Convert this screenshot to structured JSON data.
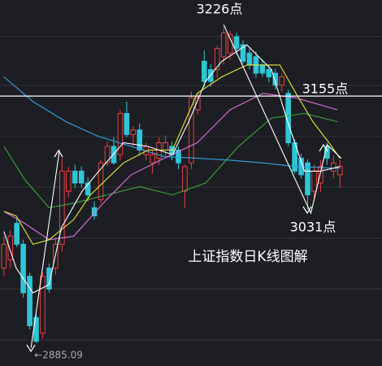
{
  "chart_data": {
    "type": "candlestick",
    "title": "上证指数日K线图解",
    "up_color": "#e8403f",
    "down_color": "#2fc6d8",
    "ylim": [
      2860,
      3260
    ],
    "xlim": [
      -0.6,
      58.5
    ],
    "open": [
      2967,
      2976,
      3016,
      2993,
      2958,
      2913,
      2896,
      2967,
      2967,
      2993,
      3051,
      3073,
      3073,
      3060,
      3033,
      3042,
      3082,
      3100,
      3091,
      3136,
      3113,
      3118,
      3091,
      3082,
      3087,
      3096,
      3100,
      3096,
      3051,
      3082,
      3140,
      3193,
      3184,
      3184,
      3198,
      3202,
      3220,
      3211,
      3202,
      3198,
      3189,
      3184,
      3180,
      3167,
      3158,
      3104,
      3087,
      3082,
      3051,
      3060,
      3100,
      3073,
      3069
    ],
    "high": [
      3002,
      3008,
      3022,
      2998,
      2962,
      2920,
      2962,
      2972,
      3000,
      3087,
      3078,
      3080,
      3078,
      3066,
      3040,
      3085,
      3105,
      3110,
      3140,
      3149,
      3122,
      3125,
      3104,
      3096,
      3110,
      3112,
      3105,
      3100,
      3080,
      3160,
      3158,
      3205,
      3190,
      3210,
      3230,
      3226,
      3224,
      3216,
      3207,
      3204,
      3195,
      3188,
      3185,
      3180,
      3162,
      3108,
      3092,
      3086,
      3080,
      3085,
      3104,
      3090,
      3085
    ],
    "low": [
      2958,
      2967,
      2990,
      2935,
      2900,
      2885.09,
      2890,
      2940,
      2960,
      2985,
      3045,
      3055,
      3055,
      3040,
      3020,
      3038,
      3078,
      3080,
      3085,
      3110,
      3100,
      3090,
      3085,
      3070,
      3080,
      3090,
      3085,
      3075,
      3033,
      3075,
      3135,
      3165,
      3165,
      3175,
      3190,
      3195,
      3200,
      3190,
      3184,
      3175,
      3176,
      3170,
      3162,
      3160,
      3100,
      3070,
      3065,
      3031,
      3040,
      3050,
      3080,
      3065,
      3055
    ],
    "close": [
      2993,
      3002,
      2993,
      2940,
      2904,
      2887,
      2958,
      2944,
      2993,
      3073,
      3073,
      3060,
      3060,
      3047,
      3024,
      3082,
      3100,
      3082,
      3136,
      3113,
      3118,
      3096,
      3100,
      3091,
      3104,
      3104,
      3091,
      3082,
      3078,
      3153,
      3153,
      3171,
      3171,
      3207,
      3224,
      3222,
      3207,
      3193,
      3189,
      3180,
      3180,
      3176,
      3167,
      3176,
      3104,
      3073,
      3069,
      3047,
      3073,
      3078,
      3087,
      3082,
      3078
    ],
    "lines": [
      {
        "color": "#2fa8e6",
        "x": [
          0,
          4.5,
          9.6,
          14.6,
          19.7,
          24.8,
          29.9,
          35,
          40.1,
          45.2,
          52
        ],
        "values": [
          3176,
          3149,
          3127,
          3111,
          3100,
          3089,
          3087,
          3085,
          3082,
          3078,
          3076
        ]
      },
      {
        "color": "#3aa83a",
        "x": [
          0,
          3.2,
          7,
          10.8,
          15.9,
          21,
          26.1,
          31.2,
          36.3,
          41.4,
          46.5,
          51.6
        ],
        "values": [
          3100,
          3064,
          3033,
          3038,
          3047,
          3056,
          3047,
          3060,
          3100,
          3131,
          3136,
          3127
        ]
      },
      {
        "color": "#e070e0",
        "x": [
          0,
          3.2,
          7,
          10.8,
          15.9,
          19.7,
          24.8,
          29.9,
          35,
          40.1,
          45.2,
          51.6
        ],
        "values": [
          3029,
          3016,
          2998,
          3002,
          3042,
          3069,
          3087,
          3104,
          3140,
          3158,
          3153,
          3140
        ]
      },
      {
        "color": "#e8e83a",
        "x": [
          0,
          1.9,
          4.5,
          7,
          10.8,
          13.4,
          18.5,
          22.3,
          26.1,
          29.9,
          33.7,
          37.6,
          42.7,
          45.2,
          47.8,
          50.3,
          52
        ],
        "values": [
          3029,
          3024,
          2993,
          2998,
          3020,
          3047,
          3082,
          3096,
          3096,
          3158,
          3176,
          3189,
          3189,
          3158,
          3127,
          3104,
          3087
        ]
      },
      {
        "color": "#ffffff",
        "x": [
          0,
          1.9,
          4.5,
          7,
          8.9,
          12.1,
          15.3,
          18.5,
          22.3,
          26.1,
          28.6,
          31.2,
          33.7,
          37.6,
          41.4,
          43.9,
          46.5,
          49,
          52
        ],
        "values": [
          3007,
          2967,
          2940,
          2949,
          3011,
          3051,
          3078,
          3104,
          3100,
          3091,
          3127,
          3171,
          3193,
          3211,
          3184,
          3127,
          3073,
          3073,
          3078
        ]
      },
      {
        "color": "#ffffff",
        "x": [
          4.2,
          8.6
        ],
        "values": [
          2880,
          3096
        ]
      },
      {
        "color": "#ffffff",
        "x": [
          34,
          47.5,
          50,
          52.2
        ],
        "values": [
          3233,
          3027,
          3102,
          3087
        ]
      }
    ],
    "hline": 3155,
    "annotations": [
      "3226点",
      "3155点",
      "3031点",
      "←2885.09"
    ]
  }
}
